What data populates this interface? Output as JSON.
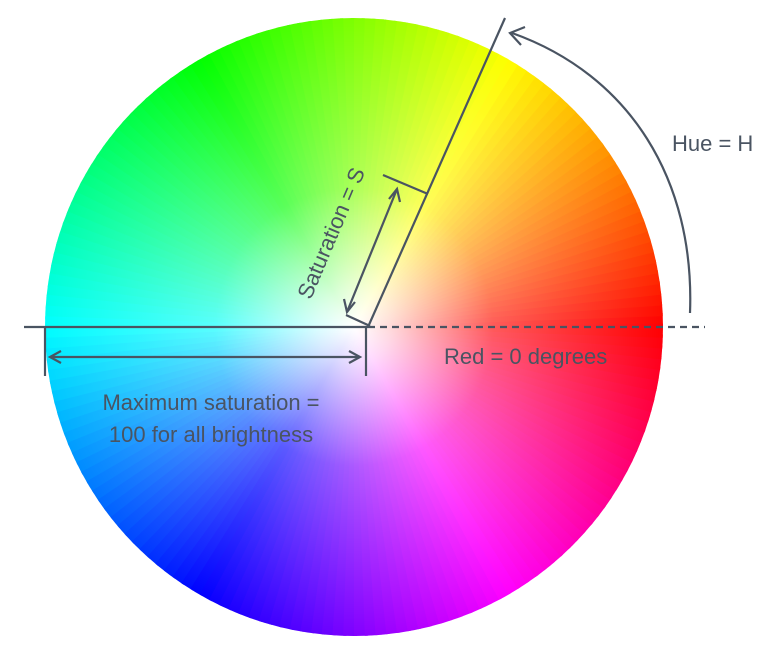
{
  "labels": {
    "hue": "Hue = H",
    "saturation": "Saturation = S",
    "red_zero": "Red = 0 degrees",
    "max_sat_line1": "Maximum saturation =",
    "max_sat_line2": "100 for all brightness"
  },
  "colors": {
    "annotation": "#4a5462",
    "red": "#ff0000",
    "yellow": "#ffff00",
    "green": "#00ff00",
    "cyan": "#00ffff",
    "blue": "#0000ff",
    "magenta": "#ff00ff",
    "center": "#ffffff"
  }
}
